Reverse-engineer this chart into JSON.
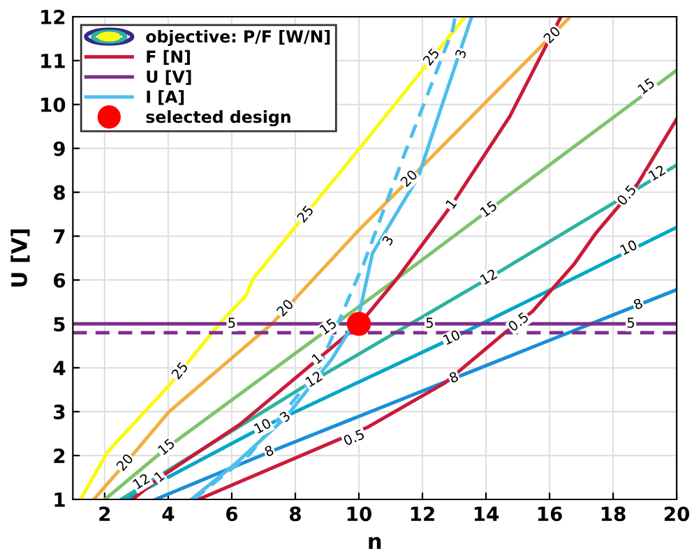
{
  "chart_data": {
    "type": "line",
    "xlabel": "n",
    "ylabel": "U [V]",
    "xlim": [
      1,
      20
    ],
    "ylim": [
      1,
      12
    ],
    "xticks": [
      2,
      4,
      6,
      8,
      10,
      12,
      14,
      16,
      18,
      20
    ],
    "yticks": [
      1,
      2,
      3,
      4,
      5,
      6,
      7,
      8,
      9,
      10,
      11,
      12
    ],
    "grid": true,
    "legend": "top left",
    "line_style": "solid",
    "series": [
      {
        "name": "objective: P/F [W/N]",
        "color": "#f9fb0e",
        "x": [
          1.24,
          2.09,
          4.03,
          5.61,
          6.46,
          6.67,
          10.0,
          13.3
        ],
        "values": [
          1,
          2.08,
          3.6,
          5,
          5.66,
          6.03,
          8.98,
          11.96
        ]
      },
      {
        "color": "#f0b040",
        "x": [
          1.66,
          2.66,
          4.03,
          7.26,
          10.0,
          11.6,
          16.6
        ],
        "values": [
          1,
          1.83,
          3.0,
          5,
          7.14,
          8.3,
          11.96
        ]
      },
      {
        "color": "#7fc36d",
        "x": [
          2.01,
          3.96,
          11.2,
          14.1,
          20
        ],
        "values": [
          1,
          2.18,
          6.03,
          7.6,
          10.78
        ]
      },
      {
        "color": "#2bb3a0",
        "x": [
          2.52,
          8.6,
          14.1,
          20
        ],
        "values": [
          1,
          3.72,
          6.05,
          8.62
        ]
      },
      {
        "color": "#04a6c8",
        "x": [
          2.68,
          6.98,
          12.93,
          20
        ],
        "values": [
          1,
          2.65,
          4.67,
          7.2
        ]
      },
      {
        "color": "#1a8fd6",
        "x": [
          3.6,
          7.19,
          13.0,
          20
        ],
        "values": [
          1,
          2.08,
          3.76,
          5.78
        ]
      },
      {
        "name": "F [N]",
        "color": "#cb1a3a",
        "x": [
          4.95,
          10.29,
          12.72,
          14.6,
          15.47,
          16.76,
          17.47,
          18.77,
          20
        ],
        "values": [
          1,
          2.65,
          3.66,
          4.8,
          5.29,
          6.35,
          7.08,
          8.19,
          9.67
        ]
      },
      {
        "color": "#cb1a3a",
        "x": [
          2.88,
          3.74,
          6.26,
          8.7,
          10.0,
          11.2,
          12.93,
          14.75,
          16.33
        ],
        "values": [
          1,
          1.5,
          2.71,
          4.19,
          4.98,
          6.03,
          7.72,
          9.73,
          11.96
        ]
      },
      {
        "name": "U [V]",
        "color": "#7e2f8e",
        "x": [
          1,
          20
        ],
        "values": [
          5,
          5
        ]
      },
      {
        "color": "#7e2f8e",
        "x": [
          1,
          20
        ],
        "values": [
          4.8,
          4.8
        ],
        "line_style": "dashed"
      },
      {
        "name": "I [A]",
        "color": "#4dbeee",
        "x": [
          4.73,
          6.11,
          7.7,
          9.14,
          10.0,
          10.43,
          11.87,
          12.59,
          13.53
        ],
        "values": [
          1,
          1.81,
          2.87,
          4.19,
          5.19,
          6.61,
          8.35,
          9.93,
          11.96
        ]
      },
      {
        "color": "#4dbeee",
        "x": [
          4.8,
          6.55,
          8.7,
          9.7,
          10.14,
          11.44,
          12.95,
          13.02
        ],
        "values": [
          1,
          2.02,
          3.92,
          5.62,
          6.35,
          8.88,
          11.7,
          11.96
        ],
        "line_style": "dashed"
      },
      {
        "name": "selected design",
        "type": "scatter",
        "marker": "circle",
        "color": "#ff0000",
        "x": [
          10
        ],
        "values": [
          5
        ]
      }
    ],
    "annotations": [
      {
        "text": "25",
        "x": 4.39,
        "y": 3.92
      },
      {
        "text": "25",
        "x": 8.34,
        "y": 7.49
      },
      {
        "text": "25",
        "x": 12.3,
        "y": 11.07
      },
      {
        "text": "20",
        "x": 2.66,
        "y": 1.83
      },
      {
        "text": "20",
        "x": 7.7,
        "y": 5.35
      },
      {
        "text": "20",
        "x": 11.6,
        "y": 8.3
      },
      {
        "text": "20",
        "x": 16.1,
        "y": 11.57
      },
      {
        "text": "15",
        "x": 3.96,
        "y": 2.18
      },
      {
        "text": "15",
        "x": 9.05,
        "y": 4.92
      },
      {
        "text": "15",
        "x": 14.1,
        "y": 7.6
      },
      {
        "text": "15",
        "x": 19.06,
        "y": 10.4
      },
      {
        "text": "12",
        "x": 3.17,
        "y": 1.39
      },
      {
        "text": "12",
        "x": 8.6,
        "y": 3.72
      },
      {
        "text": "12",
        "x": 14.1,
        "y": 6.05
      },
      {
        "text": "12",
        "x": 19.4,
        "y": 8.42
      },
      {
        "text": "10",
        "x": 6.98,
        "y": 2.65
      },
      {
        "text": "10",
        "x": 12.93,
        "y": 4.67
      },
      {
        "text": "10",
        "x": 18.5,
        "y": 6.72
      },
      {
        "text": "8",
        "x": 7.19,
        "y": 2.08
      },
      {
        "text": "8",
        "x": 13.0,
        "y": 3.76
      },
      {
        "text": "8",
        "x": 18.8,
        "y": 5.43
      },
      {
        "text": "0.5",
        "x": 9.86,
        "y": 2.39
      },
      {
        "text": "0.5",
        "x": 15.04,
        "y": 5.03
      },
      {
        "text": "0.5",
        "x": 18.45,
        "y": 7.92
      },
      {
        "text": "1",
        "x": 3.74,
        "y": 1.5
      },
      {
        "text": "1",
        "x": 8.7,
        "y": 4.19
      },
      {
        "text": "1",
        "x": 12.93,
        "y": 7.72
      },
      {
        "text": "3",
        "x": 7.7,
        "y": 2.87
      },
      {
        "text": "3",
        "x": 10.94,
        "y": 6.89
      },
      {
        "text": "3",
        "x": 13.24,
        "y": 11.15
      },
      {
        "text": "5",
        "x": 6.0,
        "y": 5
      },
      {
        "text": "5",
        "x": 12.23,
        "y": 5
      },
      {
        "text": "5",
        "x": 18.56,
        "y": 5
      }
    ]
  }
}
